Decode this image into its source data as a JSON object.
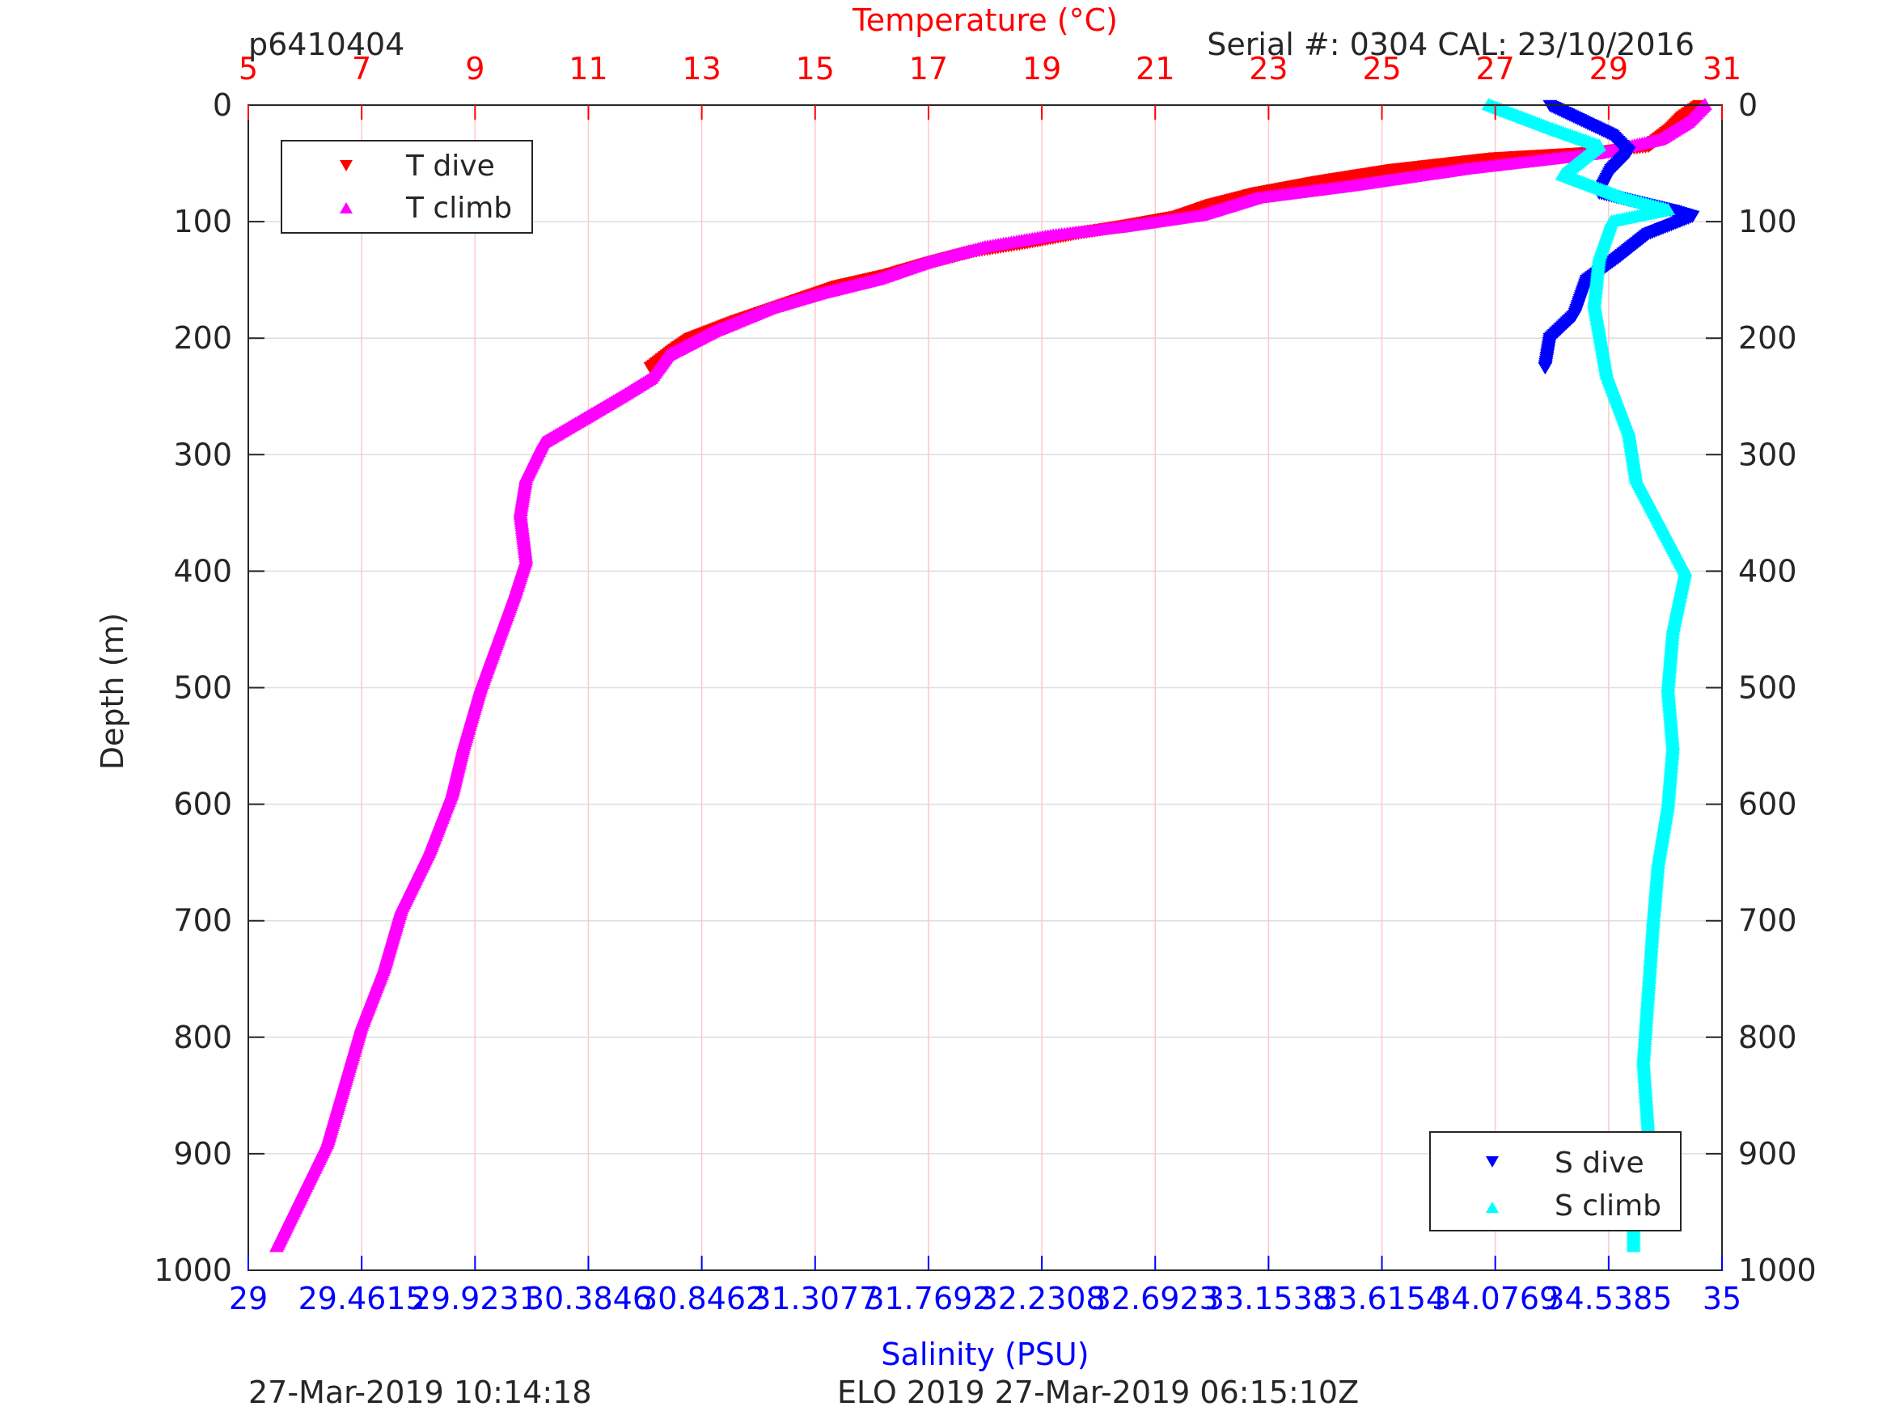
{
  "header": {
    "id_label": "p6410404",
    "serial_label": "Serial #: 0304  CAL: 23/10/2016"
  },
  "footer": {
    "left": "27-Mar-2019 10:14:18",
    "center": "ELO 2019 27-Mar-2019 06:15:10Z"
  },
  "chart_data": {
    "type": "scatter",
    "ylabel": "Depth (m)",
    "ylim": [
      1000,
      0
    ],
    "y_reversed": true,
    "yticks": [
      0,
      100,
      200,
      300,
      400,
      500,
      600,
      700,
      800,
      900,
      1000
    ],
    "top_axis": {
      "label": "Temperature (°C)",
      "range": [
        5,
        31
      ],
      "ticks": [
        5,
        7,
        9,
        11,
        13,
        15,
        17,
        19,
        21,
        23,
        25,
        27,
        29,
        31
      ],
      "color": "#ff0000"
    },
    "bottom_axis": {
      "label": "Salinity (PSU)",
      "range": [
        29,
        35
      ],
      "ticks": [
        29,
        29.4615,
        29.9231,
        30.3846,
        30.8462,
        31.3077,
        31.7692,
        32.2308,
        32.6923,
        33.1538,
        33.6154,
        34.0769,
        34.5385,
        35
      ],
      "tick_labels": [
        "29",
        "29.4615",
        "29.9231",
        "30.3846",
        "30.8462",
        "31.3077",
        "31.7692",
        "32.2308",
        "32.6923",
        "33.1538",
        "33.6154",
        "34.0769",
        "34.5385",
        "35"
      ],
      "color": "#0000ff"
    },
    "grid": true,
    "legends": [
      {
        "placement": "top-left",
        "entries": [
          "T dive",
          "T climb"
        ]
      },
      {
        "placement": "bottom-right",
        "entries": [
          "S dive",
          "S climb"
        ]
      }
    ],
    "series": [
      {
        "name": "T dive",
        "axis": "temperature",
        "marker": "triangle-down",
        "color": "#ff0000",
        "points": [
          [
            30.6,
            0
          ],
          [
            30.3,
            10
          ],
          [
            30.1,
            20
          ],
          [
            29.7,
            35
          ],
          [
            28.8,
            40
          ],
          [
            27.0,
            45
          ],
          [
            25.2,
            55
          ],
          [
            23.9,
            65
          ],
          [
            22.8,
            75
          ],
          [
            22.0,
            85
          ],
          [
            21.4,
            95
          ],
          [
            20.6,
            102
          ],
          [
            19.6,
            110
          ],
          [
            18.7,
            118
          ],
          [
            17.8,
            125
          ],
          [
            17.0,
            135
          ],
          [
            16.3,
            145
          ],
          [
            15.4,
            155
          ],
          [
            14.5,
            170
          ],
          [
            13.6,
            185
          ],
          [
            12.8,
            200
          ],
          [
            12.5,
            210
          ],
          [
            12.1,
            225
          ]
        ]
      },
      {
        "name": "T climb",
        "axis": "temperature",
        "marker": "triangle-up",
        "color": "#ff00ff",
        "points": [
          [
            30.7,
            0
          ],
          [
            30.4,
            15
          ],
          [
            29.9,
            30
          ],
          [
            28.8,
            42
          ],
          [
            26.5,
            55
          ],
          [
            24.4,
            70
          ],
          [
            22.8,
            80
          ],
          [
            21.8,
            95
          ],
          [
            20.4,
            105
          ],
          [
            19.2,
            112
          ],
          [
            18.0,
            122
          ],
          [
            17.0,
            135
          ],
          [
            16.1,
            150
          ],
          [
            15.1,
            162
          ],
          [
            14.2,
            175
          ],
          [
            13.2,
            195
          ],
          [
            12.4,
            215
          ],
          [
            12.1,
            235
          ],
          [
            11.6,
            250
          ],
          [
            10.9,
            270
          ],
          [
            10.2,
            290
          ],
          [
            9.9,
            320
          ],
          [
            9.8,
            350
          ],
          [
            9.9,
            390
          ],
          [
            9.7,
            420
          ],
          [
            9.4,
            460
          ],
          [
            9.1,
            500
          ],
          [
            8.8,
            550
          ],
          [
            8.6,
            590
          ],
          [
            8.2,
            640
          ],
          [
            7.7,
            690
          ],
          [
            7.4,
            740
          ],
          [
            7.0,
            790
          ],
          [
            6.7,
            840
          ],
          [
            6.4,
            890
          ],
          [
            6.0,
            930
          ],
          [
            5.5,
            980
          ]
        ]
      },
      {
        "name": "S dive",
        "axis": "salinity",
        "marker": "triangle-down",
        "color": "#0000ff",
        "points": [
          [
            34.3,
            0
          ],
          [
            34.55,
            25
          ],
          [
            34.62,
            40
          ],
          [
            34.55,
            55
          ],
          [
            34.5,
            75
          ],
          [
            34.8,
            90
          ],
          [
            34.88,
            95
          ],
          [
            34.7,
            110
          ],
          [
            34.58,
            130
          ],
          [
            34.45,
            150
          ],
          [
            34.4,
            180
          ],
          [
            34.3,
            200
          ],
          [
            34.28,
            225
          ]
        ]
      },
      {
        "name": "S climb",
        "axis": "salinity",
        "marker": "triangle-up",
        "color": "#00ffff",
        "points": [
          [
            34.05,
            0
          ],
          [
            34.3,
            20
          ],
          [
            34.5,
            35
          ],
          [
            34.35,
            60
          ],
          [
            34.6,
            80
          ],
          [
            34.78,
            90
          ],
          [
            34.55,
            100
          ],
          [
            34.5,
            130
          ],
          [
            34.48,
            170
          ],
          [
            34.53,
            230
          ],
          [
            34.62,
            280
          ],
          [
            34.65,
            320
          ],
          [
            34.75,
            360
          ],
          [
            34.85,
            400
          ],
          [
            34.8,
            450
          ],
          [
            34.78,
            500
          ],
          [
            34.8,
            550
          ],
          [
            34.78,
            600
          ],
          [
            34.74,
            650
          ],
          [
            34.72,
            700
          ],
          [
            34.7,
            760
          ],
          [
            34.68,
            820
          ],
          [
            34.7,
            880
          ],
          [
            34.66,
            920
          ],
          [
            34.64,
            960
          ],
          [
            34.64,
            980
          ]
        ]
      }
    ]
  }
}
